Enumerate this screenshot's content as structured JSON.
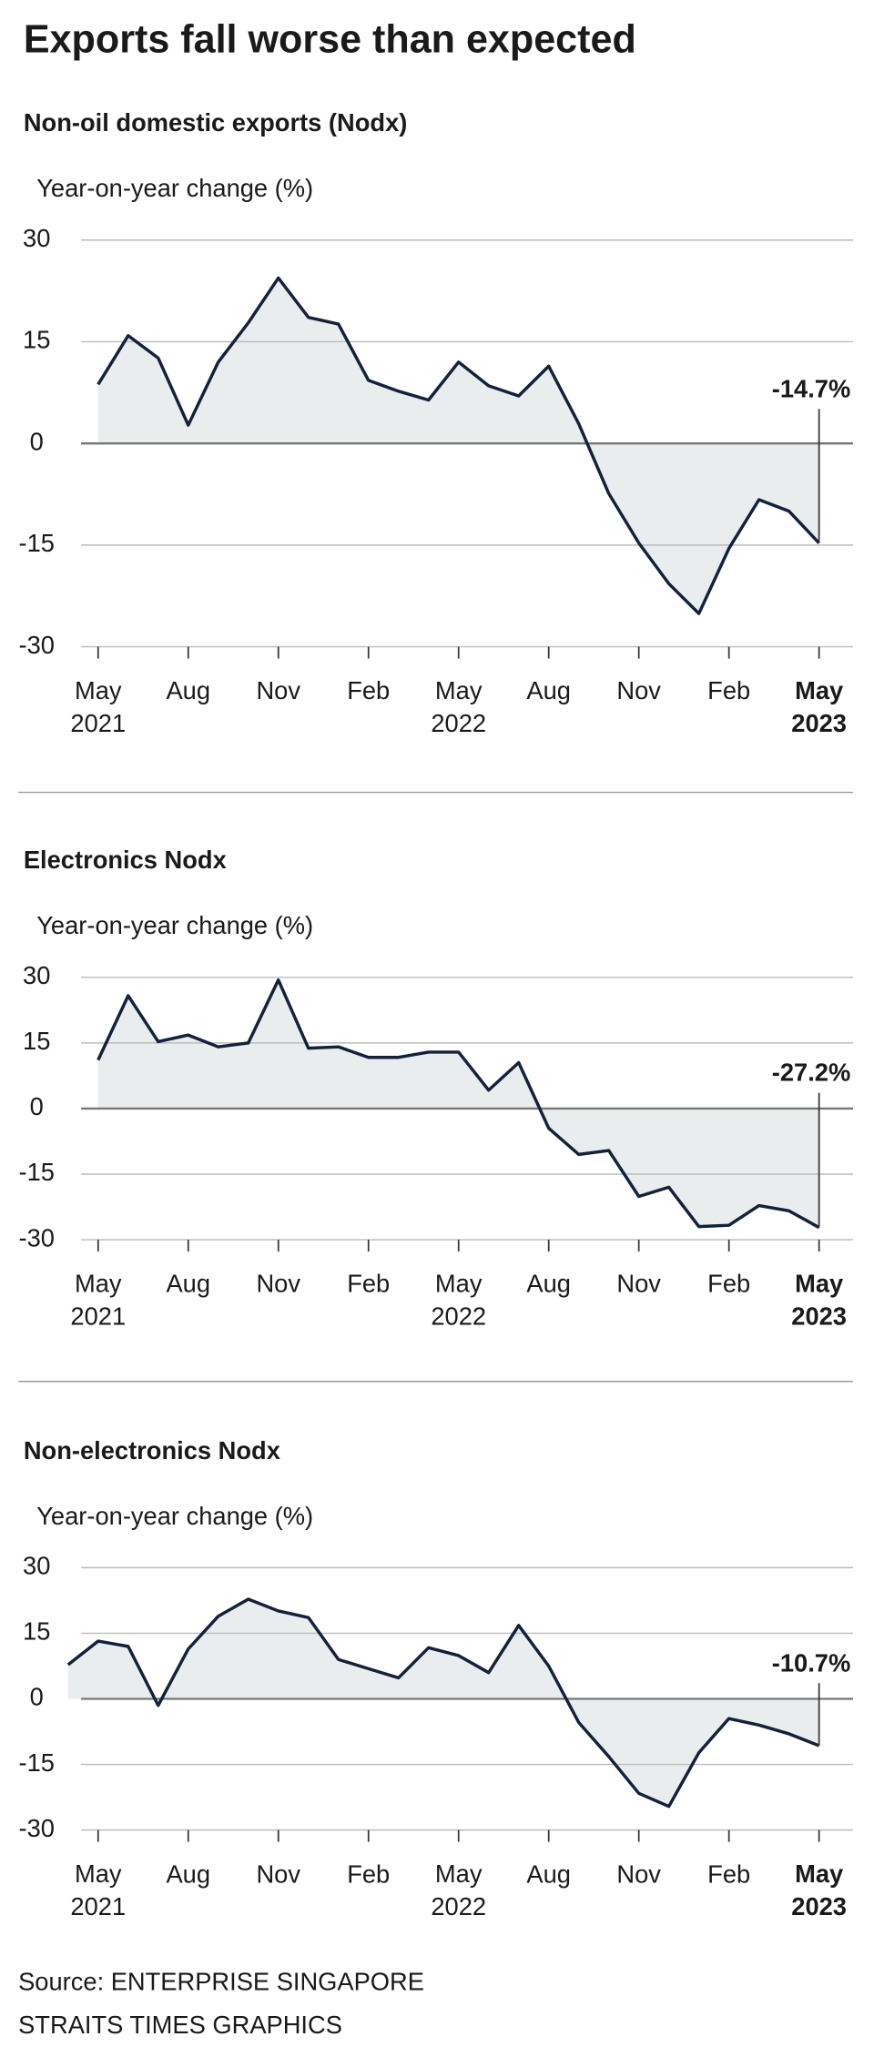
{
  "title": "Exports fall worse than expected",
  "source": [
    "Source: ENTERPRISE SINGAPORE",
    "STRAITS TIMES GRAPHICS"
  ],
  "chart_data": [
    {
      "type": "area_line",
      "title": "Non-oil domestic exports (Nodx)",
      "y_label": "Year-on-year change (%)",
      "categories": [
        "May 2021",
        null,
        null,
        "Aug",
        null,
        null,
        "Nov",
        null,
        null,
        "Feb",
        null,
        null,
        "May 2022",
        null,
        null,
        "Aug",
        null,
        null,
        "Nov",
        null,
        null,
        "Feb",
        null,
        null,
        "May 2023"
      ],
      "values": [
        8.7,
        15.9,
        12.6,
        2.7,
        12,
        17.8,
        24.4,
        18.6,
        17.6,
        9.3,
        7.7,
        6.4,
        12,
        8.5,
        7,
        11.4,
        2.9,
        -7.4,
        -14.7,
        -20.7,
        -25.1,
        -15.5,
        -8.3,
        -10,
        -14.7
      ],
      "value_labels": [
        null,
        null,
        null,
        null,
        null,
        null,
        null,
        null,
        null,
        null,
        null,
        null,
        null,
        null,
        null,
        null,
        null,
        null,
        null,
        null,
        null,
        null,
        null,
        null,
        "-14.7%"
      ],
      "ylim": [
        -30,
        30
      ],
      "yticks": [
        30,
        15,
        0,
        -15,
        -30
      ],
      "grid": true,
      "color": "#13213d",
      "fill": "#e9edee"
    },
    {
      "type": "area_line",
      "title": "Electronics Nodx",
      "y_label": "Year-on-year change (%)",
      "categories": [
        "May 2021",
        null,
        null,
        "Aug",
        null,
        null,
        "Nov",
        null,
        null,
        "Feb",
        null,
        null,
        "May 2022",
        null,
        null,
        "Aug",
        null,
        null,
        "Nov",
        null,
        null,
        "Feb",
        null,
        null,
        "May 2023"
      ],
      "values": [
        11.1,
        25.8,
        15.3,
        16.8,
        14.1,
        15,
        29.4,
        13.8,
        14.1,
        11.7,
        11.7,
        12.9,
        12.9,
        4.2,
        10.5,
        -4.5,
        -10.5,
        -9.6,
        -20.1,
        -18,
        -27,
        -26.7,
        -22.2,
        -23.4,
        -27.2
      ],
      "value_labels": [
        null,
        null,
        null,
        null,
        null,
        null,
        null,
        null,
        null,
        null,
        null,
        null,
        null,
        null,
        null,
        null,
        null,
        null,
        null,
        null,
        null,
        null,
        null,
        null,
        "-27.2%"
      ],
      "ylim": [
        -30,
        30
      ],
      "yticks": [
        30,
        15,
        0,
        -15,
        -30
      ],
      "grid": true,
      "color": "#13213d",
      "fill": "#e9edee"
    },
    {
      "type": "area_line",
      "title": "Non-electronics Nodx",
      "y_label": "Year-on-year change (%)",
      "categories": [
        null,
        "May 2021",
        null,
        null,
        "Aug",
        null,
        null,
        "Nov",
        null,
        null,
        "Feb",
        null,
        null,
        "May 2022",
        null,
        null,
        "Aug",
        null,
        null,
        "Nov",
        null,
        null,
        "Feb",
        null,
        null,
        "May 2023"
      ],
      "values": [
        7.8,
        13.2,
        12,
        -1.5,
        11.4,
        18.9,
        22.8,
        20.1,
        18.6,
        9,
        6.9,
        4.8,
        11.7,
        9.9,
        6,
        16.8,
        7.5,
        -5.4,
        -13.2,
        -21.6,
        -24.6,
        -12.3,
        -4.5,
        -6,
        -8,
        -10.7
      ],
      "value_labels": [
        null,
        null,
        null,
        null,
        null,
        null,
        null,
        null,
        null,
        null,
        null,
        null,
        null,
        null,
        null,
        null,
        null,
        null,
        null,
        null,
        null,
        null,
        null,
        null,
        null,
        "-10.7%"
      ],
      "ylim": [
        -30,
        30
      ],
      "yticks": [
        30,
        15,
        0,
        -15,
        -30
      ],
      "grid": true,
      "color": "#13213d",
      "fill": "#e9edee"
    }
  ]
}
